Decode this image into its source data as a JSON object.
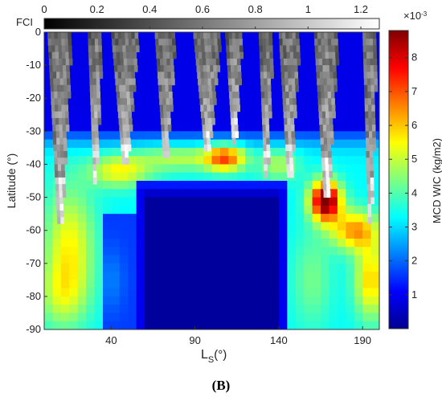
{
  "chart_data": {
    "type": "heatmap",
    "panel_label": "(B)",
    "xlabel_main": "L",
    "xlabel_sub": "S",
    "xlabel_unit": "(°)",
    "ylabel": "Latitude (°)",
    "x_ticks": [
      40,
      90,
      140,
      190
    ],
    "y_ticks": [
      0,
      -10,
      -20,
      -30,
      -40,
      -50,
      -60,
      -70,
      -80,
      -90
    ],
    "xlim": [
      0,
      200
    ],
    "ylim": [
      -90,
      0
    ],
    "colorbar": {
      "label": "MCD WIC (kg/m2)",
      "exponent": "×10",
      "exponent_power": "-3",
      "ticks": [
        1,
        2,
        3,
        4,
        5,
        6,
        7,
        8
      ],
      "range": [
        0,
        8.8
      ],
      "colormap": "jet"
    },
    "fci_colorbar": {
      "label": "FCI",
      "ticks": [
        "0",
        "0.2",
        "0.4",
        "0.6",
        "0.8",
        "1",
        "1.2"
      ],
      "range": [
        0,
        1.27
      ],
      "colormap": "gray"
    }
  }
}
